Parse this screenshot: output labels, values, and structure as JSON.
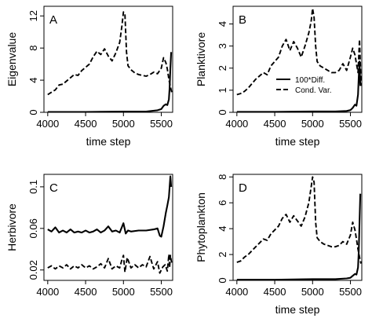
{
  "chart_data": [
    {
      "type": "line",
      "panel": "A",
      "xlabel": "time step",
      "ylabel": "Eigenvalue",
      "xlim": [
        3950,
        5650
      ],
      "ylim": [
        0,
        13.2
      ],
      "xticks": [
        4000,
        4500,
        5000,
        5500
      ],
      "yticks": [
        0,
        4,
        8,
        12
      ],
      "legend": null,
      "series": [
        {
          "style": "solid",
          "x": [
            4000,
            4500,
            5000,
            5300,
            5450,
            5500,
            5530,
            5560,
            5580,
            5600,
            5610,
            5620,
            5630
          ],
          "y": [
            0.05,
            0.05,
            0.1,
            0.1,
            0.25,
            0.4,
            0.8,
            1.0,
            0.9,
            1.6,
            3.0,
            5.5,
            7.5
          ]
        },
        {
          "style": "dashed",
          "x": [
            4000,
            4050,
            4100,
            4150,
            4200,
            4250,
            4300,
            4350,
            4400,
            4450,
            4500,
            4550,
            4600,
            4650,
            4700,
            4750,
            4800,
            4850,
            4900,
            4950,
            4980,
            5000,
            5020,
            5040,
            5060,
            5100,
            5150,
            5200,
            5250,
            5300,
            5350,
            5400,
            5450,
            5500,
            5530,
            5560,
            5580,
            5600,
            5620,
            5640
          ],
          "y": [
            2.2,
            2.5,
            2.8,
            3.4,
            3.5,
            3.9,
            4.3,
            4.7,
            4.6,
            5.2,
            5.6,
            6.0,
            6.9,
            7.6,
            7.2,
            7.9,
            7.0,
            6.4,
            7.4,
            8.7,
            10.8,
            12.5,
            12.2,
            7.5,
            5.8,
            5.3,
            4.9,
            4.7,
            4.6,
            4.5,
            4.7,
            5.0,
            4.8,
            5.5,
            6.8,
            6.2,
            5.4,
            4.1,
            3.2,
            2.4
          ]
        }
      ]
    },
    {
      "type": "line",
      "panel": "B",
      "xlabel": "time step",
      "ylabel": "Planktivore",
      "xlim": [
        3950,
        5650
      ],
      "ylim": [
        0,
        4.8
      ],
      "xticks": [
        4000,
        4500,
        5000,
        5500
      ],
      "yticks": [
        0,
        1,
        2,
        3,
        4
      ],
      "legend": {
        "position": "bottom-right",
        "entries": [
          "100*Diff.",
          "Cond. Var."
        ]
      },
      "series": [
        {
          "name": "100*Diff.",
          "style": "solid",
          "x": [
            4000,
            4500,
            5000,
            5300,
            5450,
            5500,
            5530,
            5560,
            5580,
            5600,
            5610,
            5620,
            5630
          ],
          "y": [
            0.02,
            0.02,
            0.04,
            0.04,
            0.06,
            0.1,
            0.2,
            0.35,
            0.3,
            0.8,
            1.6,
            2.3,
            1.2
          ]
        },
        {
          "name": "Cond. Var.",
          "style": "dashed",
          "x": [
            4000,
            4050,
            4100,
            4150,
            4200,
            4250,
            4300,
            4350,
            4400,
            4450,
            4500,
            4550,
            4600,
            4650,
            4700,
            4750,
            4800,
            4850,
            4900,
            4950,
            4980,
            5000,
            5020,
            5040,
            5060,
            5100,
            5150,
            5200,
            5250,
            5300,
            5350,
            5400,
            5450,
            5500,
            5530,
            5560,
            5580,
            5600,
            5620,
            5640
          ],
          "y": [
            0.8,
            0.85,
            0.95,
            1.1,
            1.3,
            1.5,
            1.65,
            1.8,
            1.7,
            2.1,
            2.3,
            2.5,
            3.0,
            3.3,
            2.8,
            3.2,
            2.9,
            2.5,
            3.0,
            3.6,
            4.1,
            4.7,
            4.3,
            3.0,
            2.3,
            2.1,
            2.0,
            1.9,
            1.8,
            1.8,
            1.9,
            2.2,
            1.9,
            2.5,
            2.9,
            2.6,
            2.2,
            1.8,
            3.3,
            1.2
          ]
        }
      ]
    },
    {
      "type": "line",
      "panel": "C",
      "xlabel": "",
      "ylabel": "Herbivore",
      "xlim": [
        3950,
        5650
      ],
      "ylim": [
        0.01,
        0.112
      ],
      "xticks": [
        4000,
        4500,
        5000,
        5500
      ],
      "yticks": [
        0.02,
        0.06,
        0.1
      ],
      "legend": null,
      "series": [
        {
          "style": "solid",
          "x": [
            4000,
            4050,
            4100,
            4150,
            4200,
            4250,
            4300,
            4350,
            4400,
            4450,
            4500,
            4550,
            4600,
            4650,
            4700,
            4750,
            4800,
            4850,
            4900,
            4950,
            5000,
            5030,
            5060,
            5100,
            5200,
            5300,
            5400,
            5450,
            5480,
            5500,
            5530,
            5560,
            5580,
            5600,
            5620,
            5630
          ],
          "y": [
            0.059,
            0.057,
            0.061,
            0.056,
            0.058,
            0.056,
            0.059,
            0.056,
            0.057,
            0.056,
            0.058,
            0.056,
            0.057,
            0.059,
            0.056,
            0.058,
            0.062,
            0.057,
            0.058,
            0.056,
            0.065,
            0.055,
            0.058,
            0.057,
            0.058,
            0.058,
            0.059,
            0.06,
            0.053,
            0.052,
            0.062,
            0.075,
            0.082,
            0.09,
            0.11,
            0.1
          ]
        },
        {
          "style": "dashed",
          "x": [
            4000,
            4050,
            4100,
            4150,
            4200,
            4250,
            4300,
            4350,
            4400,
            4450,
            4500,
            4550,
            4600,
            4650,
            4700,
            4750,
            4800,
            4850,
            4900,
            4950,
            4980,
            5000,
            5020,
            5050,
            5100,
            5150,
            5200,
            5250,
            5300,
            5350,
            5400,
            5450,
            5480,
            5500,
            5520,
            5550,
            5580,
            5600,
            5610,
            5620,
            5640
          ],
          "y": [
            0.022,
            0.024,
            0.021,
            0.024,
            0.022,
            0.025,
            0.021,
            0.024,
            0.022,
            0.025,
            0.022,
            0.024,
            0.021,
            0.023,
            0.026,
            0.022,
            0.031,
            0.021,
            0.024,
            0.022,
            0.03,
            0.034,
            0.018,
            0.032,
            0.022,
            0.025,
            0.022,
            0.025,
            0.023,
            0.033,
            0.021,
            0.028,
            0.017,
            0.02,
            0.023,
            0.025,
            0.019,
            0.035,
            0.022,
            0.034,
            0.025
          ]
        }
      ]
    },
    {
      "type": "line",
      "panel": "D",
      "xlabel": "time step",
      "ylabel": "Phytoplankton",
      "xlim": [
        3950,
        5650
      ],
      "ylim": [
        0,
        8.2
      ],
      "xticks": [
        4000,
        4500,
        5000,
        5500
      ],
      "yticks": [
        0,
        2,
        4,
        6,
        8
      ],
      "legend": null,
      "series": [
        {
          "style": "solid",
          "x": [
            4000,
            4500,
            5000,
            5300,
            5450,
            5500,
            5530,
            5560,
            5580,
            5600,
            5610,
            5620,
            5630
          ],
          "y": [
            0.05,
            0.05,
            0.1,
            0.1,
            0.15,
            0.2,
            0.35,
            0.5,
            0.45,
            1.0,
            2.2,
            4.5,
            6.7
          ]
        },
        {
          "style": "dashed",
          "x": [
            4000,
            4050,
            4100,
            4150,
            4200,
            4250,
            4300,
            4350,
            4400,
            4450,
            4500,
            4550,
            4600,
            4650,
            4700,
            4750,
            4800,
            4850,
            4900,
            4950,
            4980,
            5000,
            5020,
            5040,
            5060,
            5100,
            5150,
            5200,
            5250,
            5300,
            5350,
            5400,
            5450,
            5500,
            5530,
            5560,
            5580,
            5600,
            5620,
            5640
          ],
          "y": [
            1.4,
            1.5,
            1.8,
            2.0,
            2.3,
            2.6,
            2.9,
            3.2,
            3.1,
            3.6,
            3.9,
            4.2,
            4.8,
            5.1,
            4.5,
            5.0,
            4.6,
            4.2,
            4.9,
            6.0,
            7.2,
            8.0,
            7.6,
            4.5,
            3.3,
            3.0,
            2.8,
            2.7,
            2.6,
            2.6,
            2.7,
            3.0,
            2.8,
            3.5,
            4.5,
            3.9,
            3.2,
            2.4,
            1.8,
            1.3
          ]
        }
      ]
    }
  ]
}
